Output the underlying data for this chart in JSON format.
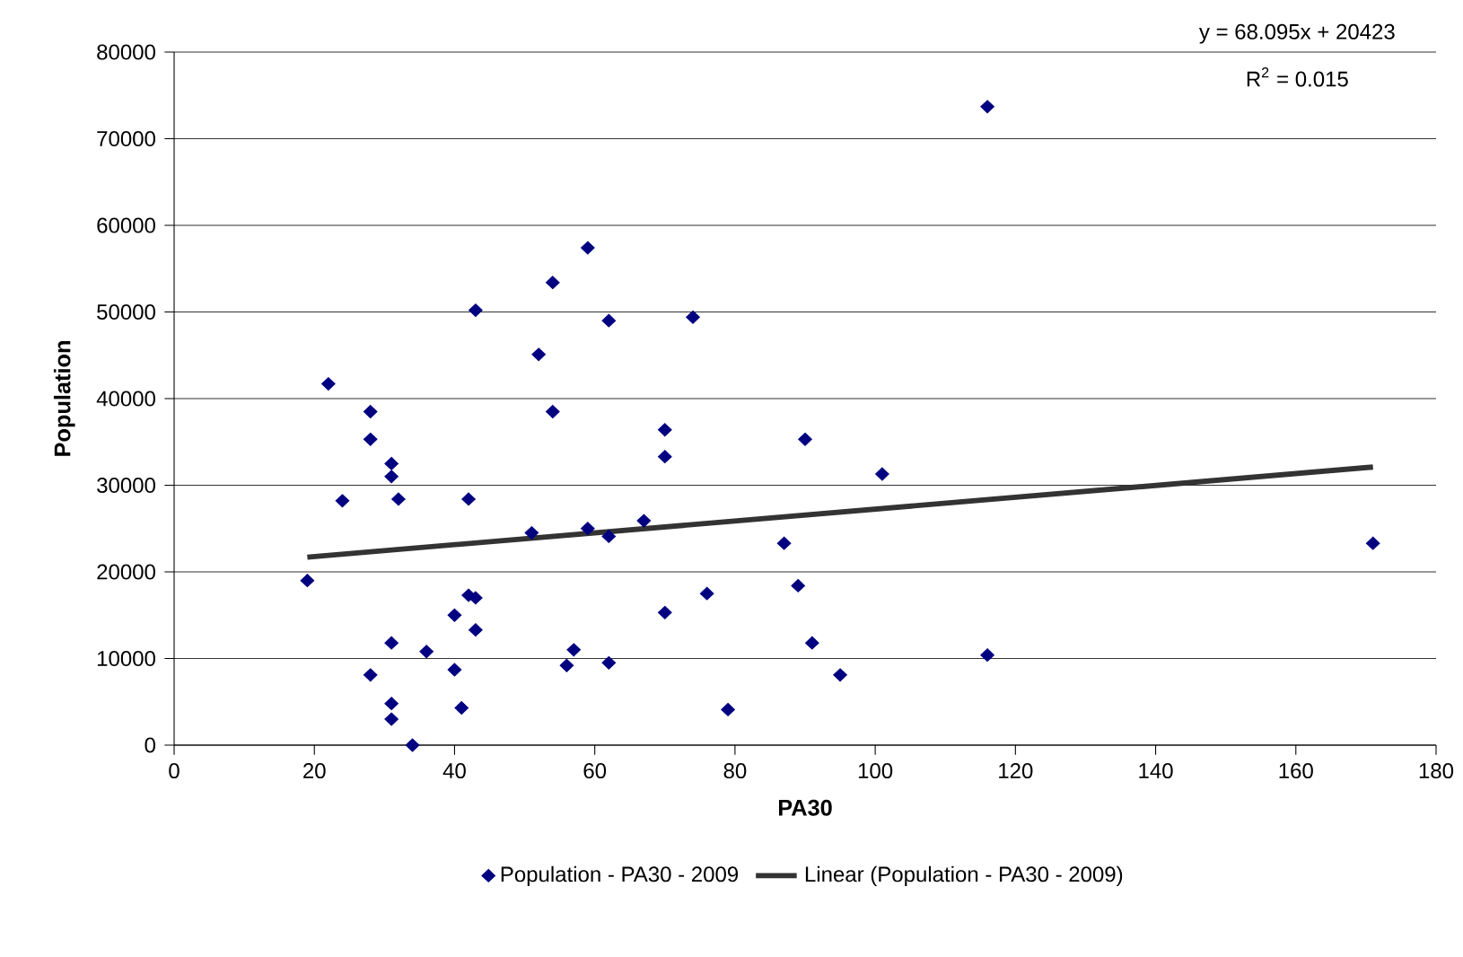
{
  "chart_data": {
    "type": "scatter",
    "xlabel": "PA30",
    "ylabel": "Population",
    "xlim": [
      0,
      180
    ],
    "xticks": [
      0,
      20,
      40,
      60,
      80,
      100,
      120,
      140,
      160,
      180
    ],
    "ylim": [
      0,
      80000
    ],
    "yticks": [
      0,
      10000,
      20000,
      30000,
      40000,
      50000,
      60000,
      70000,
      80000
    ],
    "grid": "y",
    "legend": "bottom",
    "annotations": [
      "y = 68.095x + 20423",
      "R$^{2}$ = 0.015"
    ],
    "series": [
      {
        "name": "Population - PA30 - 2009",
        "color": "#000080",
        "marker": "diamond",
        "x": [
          19,
          22,
          24,
          28,
          28,
          31,
          31,
          32,
          28,
          31,
          31,
          31,
          34,
          36,
          40,
          40,
          41,
          42,
          42,
          43,
          43,
          43,
          51,
          52,
          54,
          54,
          59,
          56,
          57,
          59,
          62,
          62,
          62,
          67,
          70,
          70,
          70,
          74,
          76,
          79,
          87,
          89,
          90,
          91,
          95,
          101,
          116,
          116,
          171
        ],
        "values": [
          19000,
          41700,
          28200,
          38500,
          35300,
          32500,
          31000,
          28400,
          8100,
          11800,
          4800,
          3000,
          0,
          10800,
          15000,
          8700,
          4300,
          28400,
          17300,
          17000,
          13300,
          50200,
          24500,
          45100,
          53400,
          38500,
          57400,
          9200,
          11000,
          25000,
          49000,
          24100,
          9500,
          25900,
          36400,
          33300,
          15300,
          49400,
          17500,
          4100,
          23300,
          18400,
          35300,
          11800,
          8100,
          31300,
          73700,
          10400,
          23300
        ]
      },
      {
        "name": "Linear (Population - PA30 - 2009)",
        "type": "line",
        "color": "#333333",
        "line_style": "solid",
        "x": [
          19,
          171
        ],
        "values": [
          21700,
          32100
        ]
      }
    ]
  }
}
